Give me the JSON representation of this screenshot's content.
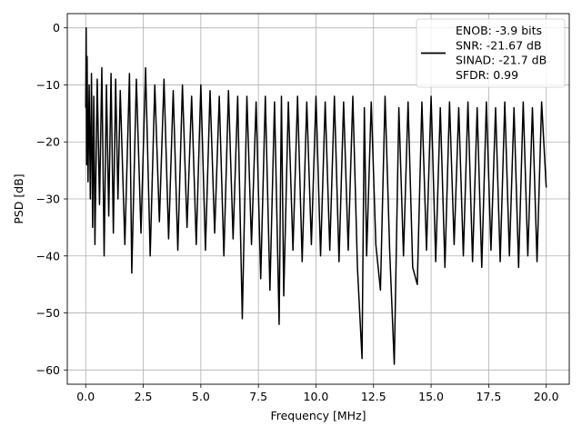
{
  "chart_data": {
    "type": "line",
    "title": "",
    "xlabel": "Frequency [MHz]",
    "ylabel": "PSD [dB]",
    "xlim": [
      -0.8,
      21.0
    ],
    "ylim": [
      -62.5,
      2.5
    ],
    "xticks": [
      0.0,
      2.5,
      5.0,
      7.5,
      10.0,
      12.5,
      15.0,
      17.5,
      20.0
    ],
    "xtick_labels": [
      "0.0",
      "2.5",
      "5.0",
      "7.5",
      "10.0",
      "12.5",
      "15.0",
      "17.5",
      "20.0"
    ],
    "yticks": [
      0,
      -10,
      -20,
      -30,
      -40,
      -50,
      -60
    ],
    "ytick_labels": [
      "0",
      "−10",
      "−20",
      "−30",
      "−40",
      "−50",
      "−60"
    ],
    "grid": true,
    "legend_placement": "top-right",
    "legend_entries": [
      "ENOB: -3.9 bits",
      "SNR: -21.67 dB",
      "SINAD: -21.7 dB",
      "SFDR: 0.99"
    ],
    "series": [
      {
        "color": "#000000",
        "x": [
          0.0,
          0.02,
          0.04,
          0.06,
          0.1,
          0.15,
          0.2,
          0.25,
          0.3,
          0.35,
          0.4,
          0.5,
          0.6,
          0.7,
          0.8,
          0.9,
          1.0,
          1.1,
          1.2,
          1.3,
          1.4,
          1.5,
          1.7,
          1.9,
          2.0,
          2.2,
          2.4,
          2.6,
          2.8,
          3.0,
          3.2,
          3.4,
          3.6,
          3.8,
          4.0,
          4.2,
          4.4,
          4.6,
          4.8,
          5.0,
          5.2,
          5.4,
          5.6,
          5.8,
          6.0,
          6.2,
          6.4,
          6.6,
          6.8,
          7.0,
          7.2,
          7.4,
          7.6,
          7.8,
          8.0,
          8.2,
          8.4,
          8.5,
          8.6,
          8.8,
          9.0,
          9.2,
          9.4,
          9.6,
          9.8,
          10.0,
          10.2,
          10.4,
          10.6,
          10.8,
          11.0,
          11.2,
          11.4,
          11.6,
          11.8,
          12.0,
          12.1,
          12.2,
          12.4,
          12.6,
          12.8,
          13.0,
          13.2,
          13.4,
          13.6,
          13.8,
          14.0,
          14.2,
          14.4,
          14.6,
          14.8,
          15.0,
          15.2,
          15.4,
          15.6,
          15.8,
          16.0,
          16.2,
          16.4,
          16.6,
          16.8,
          17.0,
          17.2,
          17.4,
          17.6,
          17.8,
          18.0,
          18.2,
          18.4,
          18.6,
          18.8,
          19.0,
          19.2,
          19.4,
          19.6,
          19.8,
          20.0
        ],
        "y": [
          -14,
          0,
          -24,
          -5,
          -27,
          -10,
          -30,
          -8,
          -35,
          -12,
          -38,
          -9,
          -31,
          -7,
          -40,
          -10,
          -33,
          -8,
          -36,
          -9,
          -30,
          -11,
          -38,
          -8,
          -43,
          -9,
          -36,
          -7,
          -40,
          -10,
          -34,
          -9,
          -37,
          -11,
          -39,
          -10,
          -35,
          -12,
          -38,
          -10,
          -39,
          -11,
          -36,
          -12,
          -40,
          -11,
          -37,
          -12,
          -51,
          -12,
          -38,
          -13,
          -44,
          -12,
          -46,
          -13,
          -52,
          -12,
          -47,
          -13,
          -39,
          -12,
          -41,
          -13,
          -38,
          -12,
          -40,
          -13,
          -39,
          -12,
          -41,
          -13,
          -39,
          -12,
          -42,
          -58,
          -14,
          -40,
          -13,
          -38,
          -46,
          -12,
          -39,
          -59,
          -14,
          -40,
          -13,
          -42,
          -45,
          -13,
          -39,
          -12,
          -41,
          -14,
          -42,
          -13,
          -38,
          -14,
          -40,
          -13,
          -41,
          -14,
          -42,
          -13,
          -39,
          -14,
          -41,
          -13,
          -40,
          -14,
          -42,
          -13,
          -40,
          -14,
          -41,
          -13,
          -28
        ]
      }
    ]
  }
}
